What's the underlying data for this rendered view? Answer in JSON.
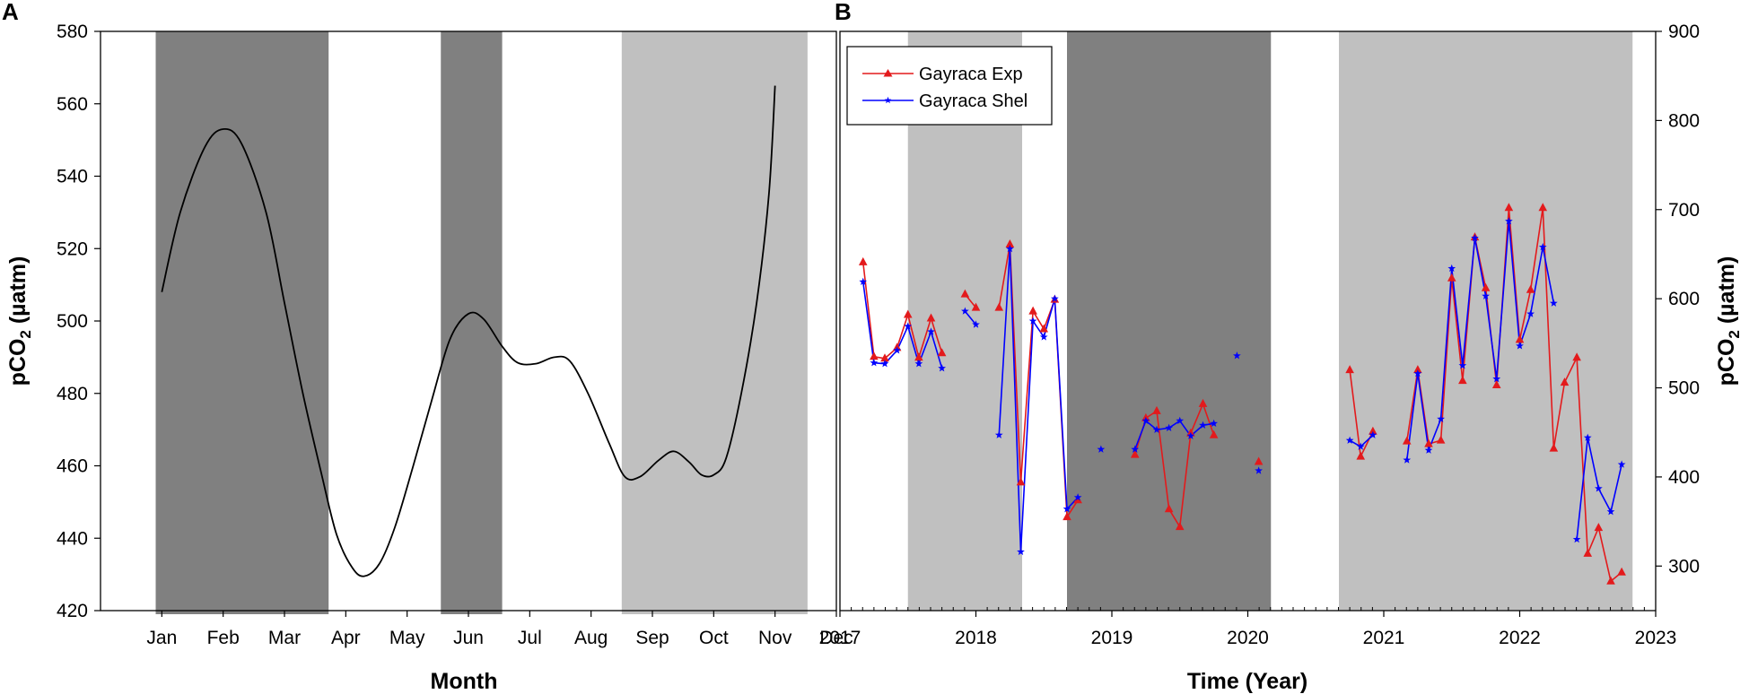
{
  "chart_data": [
    {
      "panel": "A",
      "type": "line",
      "xlabel": "Month",
      "ylabel_main": "pCO",
      "ylabel_sub": "2",
      "ylabel_unit": " (µatm)",
      "ylim": [
        420,
        580
      ],
      "yticks": [
        420,
        440,
        460,
        480,
        500,
        520,
        540,
        560,
        580
      ],
      "xlim": [
        0,
        12
      ],
      "months": [
        "Jan",
        "Feb",
        "Mar",
        "Apr",
        "May",
        "Jun",
        "Jul",
        "Aug",
        "Sep",
        "Oct",
        "Nov",
        "Dec"
      ],
      "shaded_bands": [
        {
          "from": 0.9,
          "to": 3.72,
          "shade": "dark",
          "color": "#808080"
        },
        {
          "from": 5.55,
          "to": 6.55,
          "shade": "dark",
          "color": "#808080"
        },
        {
          "from": 8.5,
          "to": 11.53,
          "shade": "light",
          "color": "#c0c0c0"
        }
      ],
      "series": [
        {
          "name": "pCO2 monthly curve",
          "color": "#000000",
          "points": [
            [
              1.0,
              508
            ],
            [
              1.3,
              530
            ],
            [
              1.7,
              548
            ],
            [
              2.0,
              553
            ],
            [
              2.3,
              549
            ],
            [
              2.7,
              530
            ],
            [
              3.0,
              505
            ],
            [
              3.3,
              480
            ],
            [
              3.6,
              458
            ],
            [
              3.85,
              441
            ],
            [
              4.1,
              432
            ],
            [
              4.3,
              429.5
            ],
            [
              4.55,
              433
            ],
            [
              4.8,
              443
            ],
            [
              5.1,
              460
            ],
            [
              5.4,
              478
            ],
            [
              5.7,
              495
            ],
            [
              6.0,
              502
            ],
            [
              6.25,
              500.5
            ],
            [
              6.55,
              493
            ],
            [
              6.8,
              488.5
            ],
            [
              7.1,
              488.2
            ],
            [
              7.4,
              490
            ],
            [
              7.65,
              489
            ],
            [
              7.95,
              480
            ],
            [
              8.3,
              466
            ],
            [
              8.55,
              457
            ],
            [
              8.8,
              457
            ],
            [
              9.1,
              461.5
            ],
            [
              9.35,
              464
            ],
            [
              9.6,
              461
            ],
            [
              9.8,
              457.5
            ],
            [
              10.0,
              457.5
            ],
            [
              10.2,
              462
            ],
            [
              10.45,
              480
            ],
            [
              10.7,
              505
            ],
            [
              10.9,
              535
            ],
            [
              11.0,
              565
            ]
          ]
        }
      ]
    },
    {
      "panel": "B",
      "type": "line",
      "xlabel": "Time (Year)",
      "ylabel_main": "pCO",
      "ylabel_sub": "2",
      "ylabel_unit": " (µatm)",
      "ylim": [
        250,
        900
      ],
      "yticks": [
        300,
        400,
        500,
        600,
        700,
        800,
        900
      ],
      "xlim": [
        2017,
        2023
      ],
      "xticks": [
        2017,
        2018,
        2019,
        2020,
        2021,
        2022,
        2023
      ],
      "shaded_bands": [
        {
          "from": 2017.5,
          "to": 2018.34,
          "shade": "light",
          "color": "#c0c0c0"
        },
        {
          "from": 2018.67,
          "to": 2020.17,
          "shade": "dark",
          "color": "#808080"
        },
        {
          "from": 2020.67,
          "to": 2022.83,
          "shade": "light",
          "color": "#c0c0c0"
        }
      ],
      "legend": {
        "position": "top-left",
        "entries": [
          "Gayraca Exp",
          "Gayraca Shel"
        ]
      },
      "series": [
        {
          "name": "Gayraca Exp",
          "color": "#e31a1c",
          "marker": "triangle",
          "segments": [
            [
              [
                2017.17,
                641
              ],
              [
                2017.25,
                535
              ],
              [
                2017.33,
                533
              ],
              [
                2017.42,
                545
              ],
              [
                2017.5,
                582
              ],
              [
                2017.58,
                534
              ],
              [
                2017.67,
                578
              ],
              [
                2017.75,
                539
              ]
            ],
            [
              [
                2017.92,
                605
              ],
              [
                2018.0,
                590
              ]
            ],
            [
              [
                2018.17,
                590
              ],
              [
                2018.25,
                661
              ],
              [
                2018.33,
                394
              ],
              [
                2018.42,
                586
              ],
              [
                2018.5,
                566
              ],
              [
                2018.58,
                599
              ],
              [
                2018.67,
                355
              ],
              [
                2018.75,
                374
              ]
            ],
            [
              [
                2019.17,
                425
              ],
              [
                2019.25,
                466
              ],
              [
                2019.33,
                474
              ],
              [
                2019.42,
                364
              ],
              [
                2019.5,
                344
              ],
              [
                2019.58,
                449
              ],
              [
                2019.67,
                482
              ],
              [
                2019.75,
                447
              ]
            ],
            [
              [
                2020.08,
                417
              ]
            ],
            [
              [
                2020.75,
                520
              ],
              [
                2020.83,
                423
              ],
              [
                2020.92,
                451
              ]
            ],
            [
              [
                2021.17,
                440
              ],
              [
                2021.25,
                520
              ],
              [
                2021.33,
                437
              ],
              [
                2021.42,
                441
              ],
              [
                2021.5,
                623
              ],
              [
                2021.58,
                508
              ],
              [
                2021.67,
                669
              ],
              [
                2021.75,
                612
              ],
              [
                2021.83,
                503
              ],
              [
                2021.92,
                702
              ],
              [
                2022.0,
                554
              ],
              [
                2022.08,
                610
              ],
              [
                2022.17,
                702
              ],
              [
                2022.25,
                432
              ],
              [
                2022.33,
                506
              ],
              [
                2022.42,
                534
              ],
              [
                2022.5,
                314
              ],
              [
                2022.58,
                343
              ],
              [
                2022.67,
                283
              ],
              [
                2022.75,
                293
              ]
            ]
          ]
        },
        {
          "name": "Gayraca Shel",
          "color": "#0000ff",
          "marker": "star",
          "segments": [
            [
              [
                2017.17,
                619
              ],
              [
                2017.25,
                528
              ],
              [
                2017.33,
                527
              ],
              [
                2017.42,
                542
              ],
              [
                2017.5,
                569
              ],
              [
                2017.58,
                527
              ],
              [
                2017.67,
                563
              ],
              [
                2017.75,
                522
              ]
            ],
            [
              [
                2017.92,
                586
              ],
              [
                2018.0,
                571
              ]
            ],
            [
              [
                2018.17,
                447
              ],
              [
                2018.25,
                656
              ],
              [
                2018.33,
                316
              ],
              [
                2018.42,
                575
              ],
              [
                2018.5,
                557
              ],
              [
                2018.58,
                600
              ],
              [
                2018.67,
                364
              ],
              [
                2018.75,
                377
              ]
            ],
            [
              [
                2018.92,
                431
              ]
            ],
            [
              [
                2019.17,
                431
              ],
              [
                2019.25,
                463
              ],
              [
                2019.33,
                453
              ],
              [
                2019.42,
                455
              ],
              [
                2019.5,
                463
              ],
              [
                2019.58,
                446
              ],
              [
                2019.67,
                458
              ],
              [
                2019.75,
                460
              ]
            ],
            [
              [
                2019.92,
                536
              ]
            ],
            [
              [
                2020.08,
                407
              ]
            ],
            [
              [
                2020.75,
                441
              ],
              [
                2020.83,
                434
              ],
              [
                2020.92,
                447
              ]
            ],
            [
              [
                2021.17,
                419
              ],
              [
                2021.25,
                516
              ],
              [
                2021.33,
                430
              ],
              [
                2021.42,
                465
              ],
              [
                2021.5,
                634
              ],
              [
                2021.58,
                525
              ],
              [
                2021.67,
                668
              ],
              [
                2021.75,
                603
              ],
              [
                2021.83,
                510
              ],
              [
                2021.92,
                687
              ],
              [
                2022.0,
                547
              ],
              [
                2022.08,
                583
              ],
              [
                2022.17,
                658
              ],
              [
                2022.25,
                595
              ]
            ],
            [
              [
                2022.42,
                330
              ],
              [
                2022.5,
                444
              ],
              [
                2022.58,
                387
              ],
              [
                2022.67,
                361
              ],
              [
                2022.75,
                414
              ]
            ]
          ]
        }
      ]
    }
  ]
}
